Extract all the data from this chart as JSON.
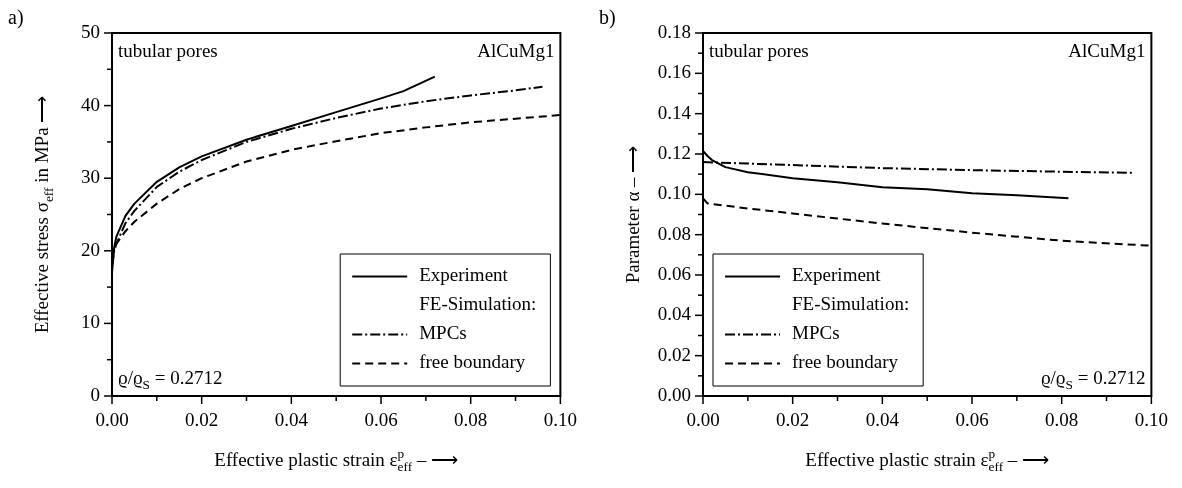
{
  "chart_data": [
    {
      "type": "line",
      "title": "a)",
      "xlabel": "Effective plastic strain ε$_{eff}$$^{p}$ – ⟶",
      "ylabel": "Effective stress σ$_{eff}$ in MPa ⟶",
      "legend_title": "FE-Simulation:",
      "legend": "bottom right",
      "grid": false,
      "marker": "none",
      "annotations": [
        "tubular pores",
        "AlCuMg1",
        "ϱ/ϱ$_{S}$ = 0.2712"
      ],
      "xlim": [
        0,
        0.1
      ],
      "xticks": [
        {
          "value": 0,
          "label": "0.00"
        },
        {
          "value": 0.01,
          "label": null
        },
        {
          "value": 0.02,
          "label": "0.02"
        },
        {
          "value": 0.03,
          "label": null
        },
        {
          "value": 0.04,
          "label": "0.04"
        },
        {
          "value": 0.05,
          "label": null
        },
        {
          "value": 0.06,
          "label": "0.06"
        },
        {
          "value": 0.07,
          "label": null
        },
        {
          "value": 0.08,
          "label": "0.08"
        },
        {
          "value": 0.09,
          "label": null
        },
        {
          "value": 0.1,
          "label": "0.10"
        }
      ],
      "ylim": [
        0,
        50
      ],
      "yticks": [
        0,
        {
          "value": 5,
          "label": null
        },
        10,
        {
          "value": 15,
          "label": null
        },
        20,
        {
          "value": 25,
          "label": null
        },
        30,
        {
          "value": 35,
          "label": null
        },
        40,
        {
          "value": 45,
          "label": null
        },
        50
      ],
      "series": [
        {
          "name": "Experiment",
          "color": "#000000",
          "line_style": "solid",
          "x": [
            0,
            0.0005,
            0.001,
            0.003,
            0.005,
            0.01,
            0.015,
            0.02,
            0.03,
            0.04,
            0.05,
            0.06,
            0.065,
            0.072
          ],
          "values": [
            17,
            20.5,
            22,
            24.8,
            26.5,
            29.5,
            31.5,
            33,
            35.3,
            37.2,
            39.1,
            41,
            42,
            44
          ]
        },
        {
          "name": "MPCs",
          "color": "#000000",
          "line_style": "dashdot",
          "x": [
            0,
            0.0005,
            0.001,
            0.003,
            0.005,
            0.01,
            0.015,
            0.02,
            0.03,
            0.04,
            0.05,
            0.06,
            0.07,
            0.08,
            0.09,
            0.096
          ],
          "values": [
            18,
            20,
            21,
            23.8,
            25.5,
            28.8,
            30.9,
            32.5,
            35,
            36.8,
            38.3,
            39.6,
            40.6,
            41.4,
            42.1,
            42.6
          ]
        },
        {
          "name": "free boundary",
          "color": "#000000",
          "line_style": "dashed",
          "x": [
            0,
            0.0005,
            0.001,
            0.003,
            0.005,
            0.01,
            0.015,
            0.02,
            0.03,
            0.04,
            0.05,
            0.06,
            0.07,
            0.08,
            0.09,
            0.1
          ],
          "values": [
            19,
            20.3,
            21,
            22.7,
            24,
            26.5,
            28.5,
            30,
            32.3,
            33.9,
            35.1,
            36.2,
            37,
            37.7,
            38.2,
            38.7
          ]
        }
      ]
    },
    {
      "type": "line",
      "title": "b)",
      "xlabel": "Effective plastic strain ε$_{eff}$$^{p}$ – ⟶",
      "ylabel": "Parameter α – ⟶",
      "legend_title": "FE-Simulation:",
      "legend": "bottom left",
      "grid": false,
      "marker": "none",
      "annotations": [
        "tubular pores",
        "AlCuMg1",
        "ϱ/ϱ$_{S}$ = 0.2712"
      ],
      "xlim": [
        0,
        0.1
      ],
      "xticks": [
        {
          "value": 0,
          "label": "0.00"
        },
        {
          "value": 0.01,
          "label": null
        },
        {
          "value": 0.02,
          "label": "0.02"
        },
        {
          "value": 0.03,
          "label": null
        },
        {
          "value": 0.04,
          "label": "0.04"
        },
        {
          "value": 0.05,
          "label": null
        },
        {
          "value": 0.06,
          "label": "0.06"
        },
        {
          "value": 0.07,
          "label": null
        },
        {
          "value": 0.08,
          "label": "0.08"
        },
        {
          "value": 0.09,
          "label": null
        },
        {
          "value": 0.1,
          "label": "0.10"
        }
      ],
      "ylim": [
        0,
        0.18
      ],
      "yticks": [
        {
          "value": 0,
          "label": "0.00"
        },
        {
          "value": 0.01,
          "label": null
        },
        {
          "value": 0.02,
          "label": "0.02"
        },
        {
          "value": 0.03,
          "label": null
        },
        {
          "value": 0.04,
          "label": "0.04"
        },
        {
          "value": 0.05,
          "label": null
        },
        {
          "value": 0.06,
          "label": "0.06"
        },
        {
          "value": 0.07,
          "label": null
        },
        {
          "value": 0.08,
          "label": "0.08"
        },
        {
          "value": 0.09,
          "label": null
        },
        {
          "value": 0.1,
          "label": "0.10"
        },
        {
          "value": 0.11,
          "label": null
        },
        0.12,
        {
          "value": 0.13,
          "label": null
        },
        0.14,
        {
          "value": 0.15,
          "label": null
        },
        0.16,
        {
          "value": 0.17,
          "label": null
        },
        0.18
      ],
      "series": [
        {
          "name": "Experiment",
          "color": "#000000",
          "line_style": "solid",
          "x": [
            0,
            0.001,
            0.002,
            0.005,
            0.01,
            0.02,
            0.03,
            0.04,
            0.05,
            0.06,
            0.07,
            0.0815
          ],
          "values": [
            0.1215,
            0.119,
            0.117,
            0.1135,
            0.111,
            0.108,
            0.106,
            0.1035,
            0.1025,
            0.1005,
            0.0995,
            0.098
          ]
        },
        {
          "name": "MPCs",
          "color": "#000000",
          "line_style": "dashdot",
          "x": [
            0,
            0.02,
            0.04,
            0.06,
            0.08,
            0.096
          ],
          "values": [
            0.116,
            0.1145,
            0.113,
            0.112,
            0.1112,
            0.1107
          ]
        },
        {
          "name": "free boundary",
          "color": "#000000",
          "line_style": "dashed",
          "x": [
            0,
            0.001,
            0.01,
            0.02,
            0.04,
            0.06,
            0.08,
            0.1
          ],
          "values": [
            0.098,
            0.0955,
            0.093,
            0.0905,
            0.0855,
            0.081,
            0.077,
            0.0745
          ]
        }
      ]
    }
  ]
}
